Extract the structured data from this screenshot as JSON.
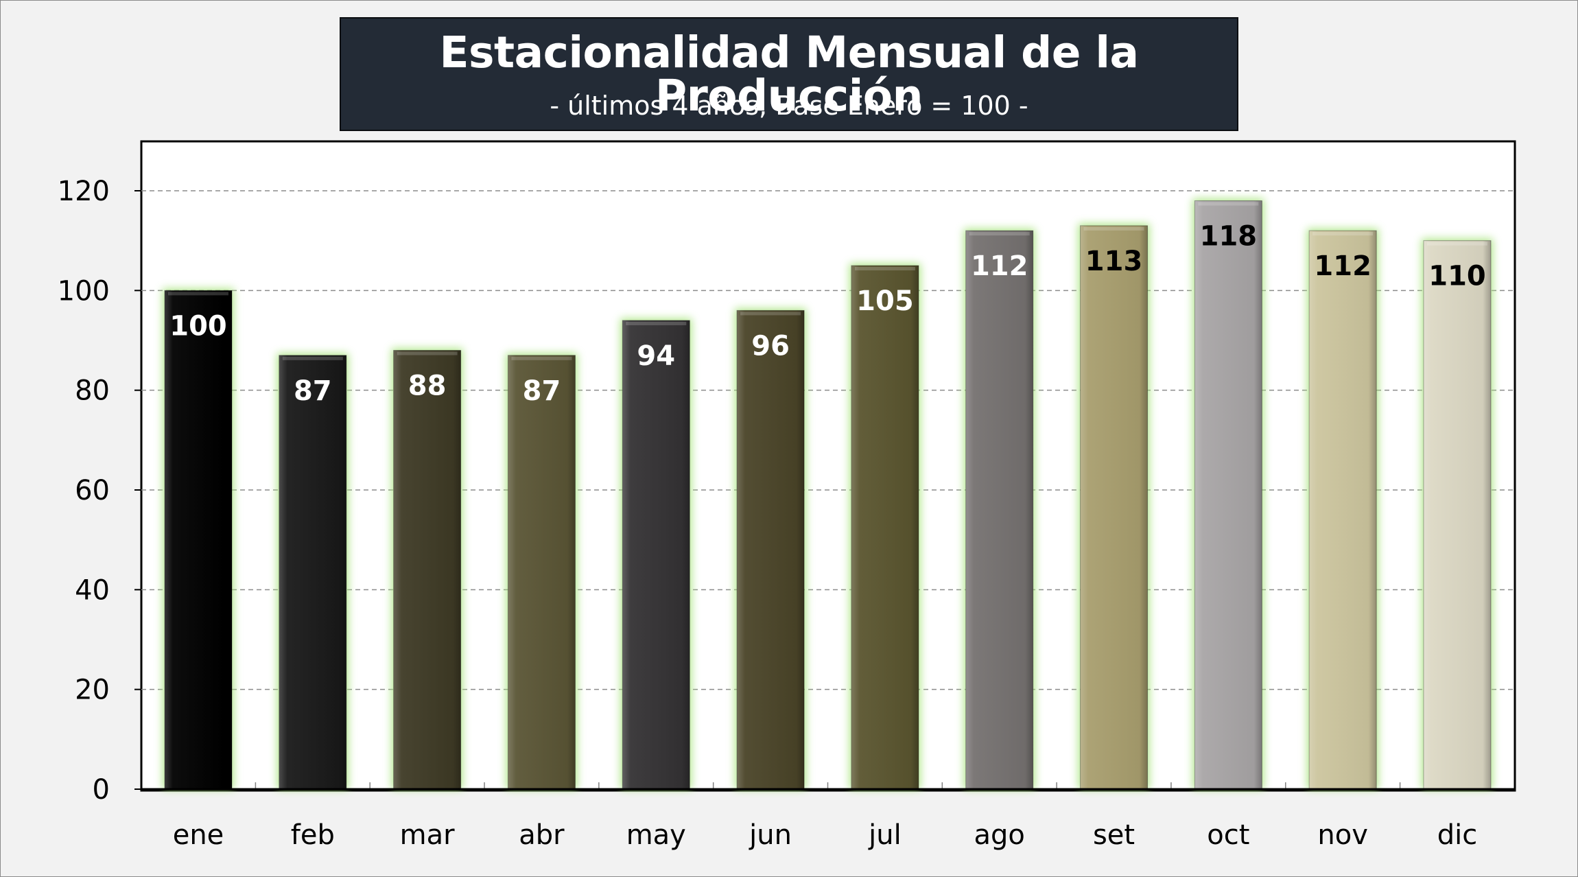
{
  "chart_data": {
    "type": "bar",
    "title": "Estacionalidad Mensual de la Producción",
    "subtitle": "- últimos 4 años, Base Enero = 100 -",
    "categories": [
      "ene",
      "feb",
      "mar",
      "abr",
      "may",
      "jun",
      "jul",
      "ago",
      "set",
      "oct",
      "nov",
      "dic"
    ],
    "values": [
      100,
      87,
      88,
      87,
      94,
      96,
      105,
      112,
      113,
      118,
      112,
      110
    ],
    "bar_colors": [
      "#000000",
      "#191919",
      "#3e3a25",
      "#5a5535",
      "#343234",
      "#4a4428",
      "#5a552f",
      "#757170",
      "#a89e6e",
      "#a8a5a6",
      "#ccc59e",
      "#dcd8c4"
    ],
    "label_colors": [
      "#ffffff",
      "#ffffff",
      "#ffffff",
      "#ffffff",
      "#ffffff",
      "#ffffff",
      "#ffffff",
      "#ffffff",
      "#000000",
      "#000000",
      "#000000",
      "#000000"
    ],
    "glow_color": "#a6e37a",
    "ylim": [
      0,
      130
    ],
    "yticks": [
      0,
      20,
      40,
      60,
      80,
      100,
      120
    ],
    "grid": true,
    "legend": "none",
    "xlabel": "",
    "ylabel": ""
  }
}
